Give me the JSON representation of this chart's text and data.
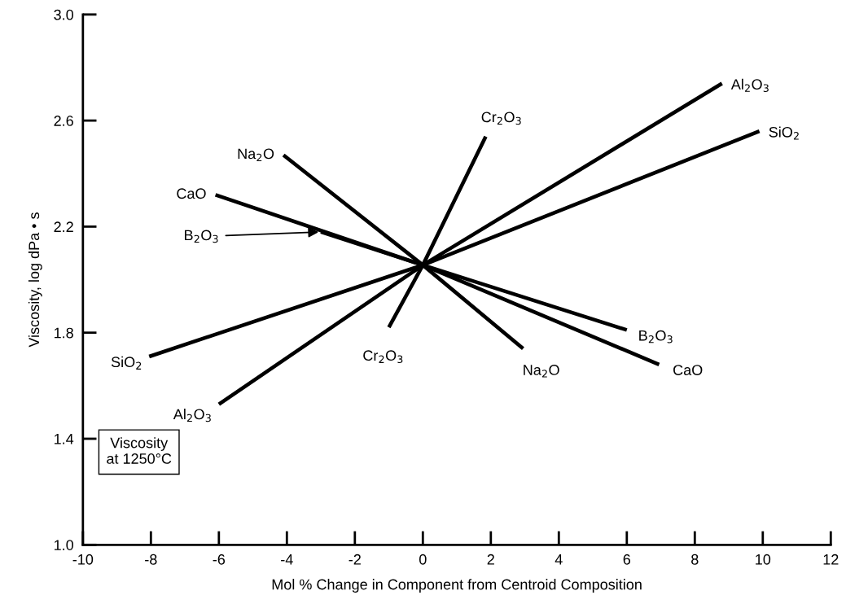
{
  "chart_data": {
    "type": "line",
    "xlabel": "Mol % Change in Component from Centroid Composition",
    "ylabel": "Viscosity, log dPa • s",
    "xlim": [
      -10,
      12
    ],
    "xticks": [
      -10,
      -8,
      -6,
      -4,
      -2,
      0,
      2,
      4,
      6,
      8,
      10,
      12
    ],
    "ylim": [
      1.0,
      3.0
    ],
    "yticks": [
      {
        "value": 1,
        "label": "1.0"
      },
      1.4,
      1.8,
      2.2,
      2.6,
      {
        "value": 3,
        "label": "3.0"
      }
    ],
    "grid": false,
    "legend": false,
    "marker": "none",
    "line_style": "solid",
    "series": [
      {
        "name": "Al$_{2}$O$_{3}$",
        "color": "#000000",
        "x": [
          -6.0,
          0,
          8.8
        ],
        "values": [
          1.53,
          2.055,
          2.74
        ]
      },
      {
        "name": "SiO$_{2}$",
        "color": "#000000",
        "x": [
          -8.05,
          0,
          9.9
        ],
        "values": [
          1.71,
          2.055,
          2.56
        ]
      },
      {
        "name": "Cr$_{2}$O$_{3}$",
        "color": "#000000",
        "x": [
          -1.0,
          0,
          1.85
        ],
        "values": [
          1.82,
          2.055,
          2.54
        ]
      },
      {
        "name": "Na$_{2}$O",
        "color": "#000000",
        "x": [
          -4.1,
          0,
          2.95
        ],
        "values": [
          2.47,
          2.055,
          1.74
        ]
      },
      {
        "name": "CaO",
        "color": "#000000",
        "x": [
          -6.1,
          0,
          6.95
        ],
        "values": [
          2.32,
          2.055,
          1.68
        ]
      },
      {
        "name": "B$_{2}$O$_{3}$",
        "color": "#000000",
        "x": [
          -3.0,
          0,
          6.0
        ],
        "values": [
          2.18,
          2.055,
          1.81
        ]
      }
    ],
    "annotations": [
      {
        "text": "Al$_{2}$O$_{3}$",
        "x": -6.0,
        "y": 1.53
      },
      {
        "text": "SiO$_{2}$",
        "x": -8.05,
        "y": 1.71
      },
      {
        "text": "Cr$_{2}$O$_{3}$",
        "x": -1.0,
        "y": 1.82
      },
      {
        "text": "Na$_{2}$O",
        "x": -4.1,
        "y": 2.47
      },
      {
        "text": "CaO",
        "x": -6.1,
        "y": 2.32
      },
      {
        "text": "B$_{2}$O$_{3}$",
        "x": -3.0,
        "y": 2.18
      },
      "Viscosity\nat 1250°C"
    ]
  }
}
